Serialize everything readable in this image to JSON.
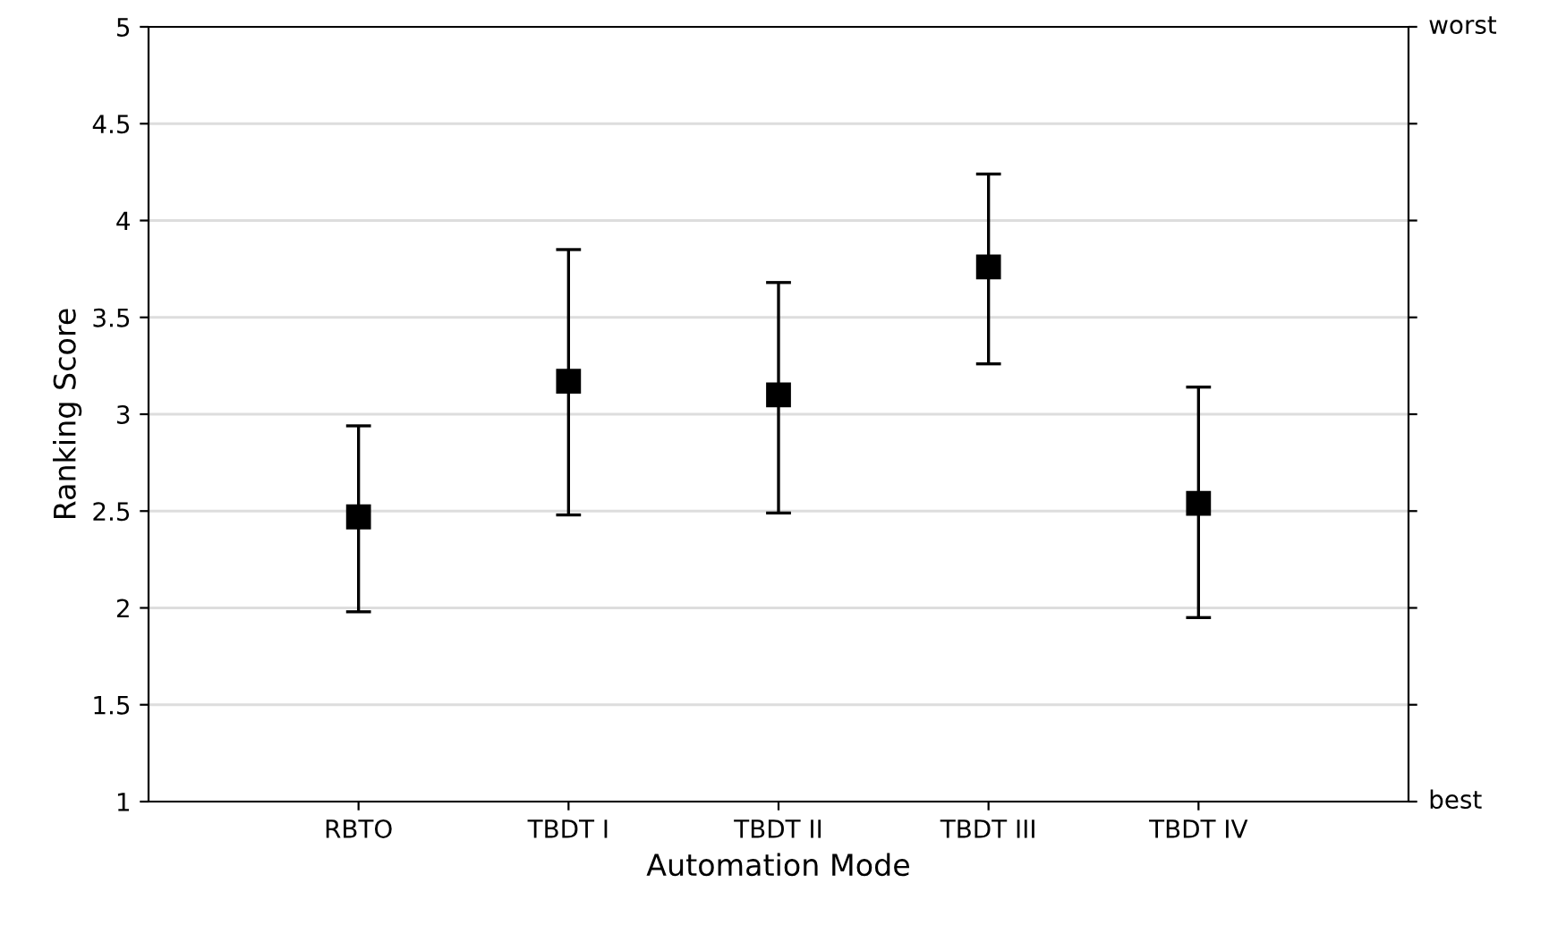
{
  "chart_data": {
    "type": "scatter",
    "xlabel": "Automation Mode",
    "ylabel": "Ranking Score",
    "categories": [
      "RBTO",
      "TBDT I",
      "TBDT II",
      "TBDT III",
      "TBDT IV"
    ],
    "series": [
      {
        "color": "#000000",
        "values": [
          2.47,
          3.17,
          3.1,
          3.76,
          2.54
        ],
        "errors": [
          [
            1.98,
            2.94
          ],
          [
            2.48,
            3.85
          ],
          [
            2.49,
            3.68
          ],
          [
            3.26,
            4.24
          ],
          [
            1.95,
            3.14
          ]
        ]
      }
    ],
    "ylim": [
      1,
      5
    ],
    "yticks": [
      1,
      1.5,
      2,
      2.5,
      3,
      3.5,
      4,
      4.5,
      5
    ],
    "annotations": [
      "best",
      "worst"
    ],
    "grid": "y",
    "marker": "square"
  }
}
